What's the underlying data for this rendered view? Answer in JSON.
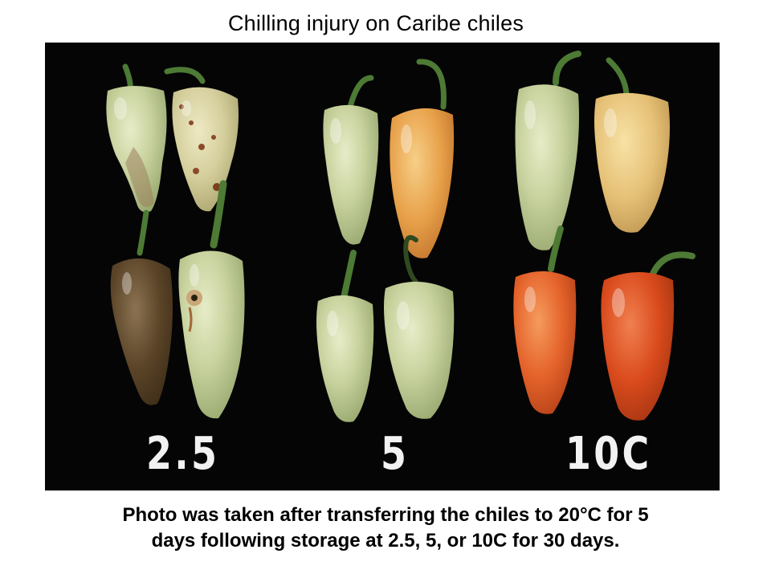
{
  "title": "Chilling injury on Caribe chiles",
  "photo": {
    "labels": {
      "low": "2.5",
      "mid": "5",
      "high": "10C"
    },
    "colors": {
      "background": "#050505",
      "pale_green": "#c9d39f",
      "injured_brown": "#5b4428",
      "orange": "#e8a14a",
      "red_orange": "#e4622a",
      "stem_green": "#4d7a34"
    }
  },
  "caption": {
    "line1": "Photo was taken after transferring the chiles to 20°C for 5",
    "line2": "days following storage at 2.5, 5, or 10C for 30 days."
  }
}
